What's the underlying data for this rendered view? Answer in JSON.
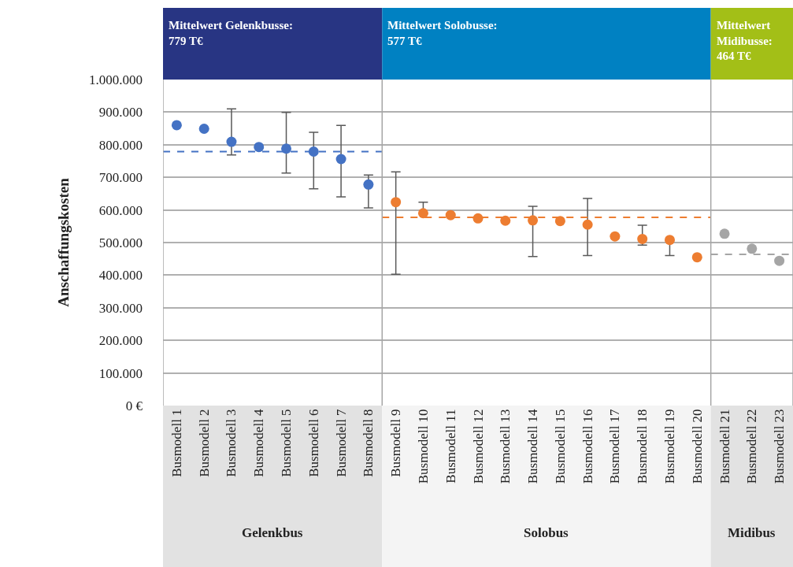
{
  "chart_data": {
    "type": "scatter",
    "ylabel": "Anschaffungskosten",
    "categories": [
      "Busmodell 1",
      "Busmodell 2",
      "Busmodell 3",
      "Busmodell 4",
      "Busmodell 5",
      "Busmodell 6",
      "Busmodell 7",
      "Busmodell 8",
      "Busmodell 9",
      "Busmodell 10",
      "Busmodell 11",
      "Busmodell 12",
      "Busmodell 13",
      "Busmodell 14",
      "Busmodell 15",
      "Busmodell 16",
      "Busmodell 17",
      "Busmodell 18",
      "Busmodell 19",
      "Busmodell 20",
      "Busmodell 21",
      "Busmodell 22",
      "Busmodell 23"
    ],
    "series": [
      {
        "color": "#4472c4",
        "values": [
          860000,
          849000,
          809000,
          793000,
          788000,
          779000,
          756000,
          678000,
          null,
          null,
          null,
          null,
          null,
          null,
          null,
          null,
          null,
          null,
          null,
          null,
          null,
          null,
          null
        ],
        "errors": [
          null,
          null,
          [
            769000,
            910000
          ],
          null,
          [
            713000,
            899000
          ],
          [
            665000,
            838000
          ],
          [
            640000,
            859000
          ],
          [
            606000,
            707000
          ],
          null,
          null,
          null,
          null,
          null,
          null,
          null,
          null,
          null,
          null,
          null,
          null,
          null,
          null,
          null
        ]
      },
      {
        "color": "#ed7d31",
        "values": [
          null,
          null,
          null,
          null,
          null,
          null,
          null,
          null,
          624000,
          590000,
          584000,
          574000,
          567000,
          568000,
          566000,
          555000,
          519000,
          511000,
          508000,
          455000,
          null,
          null,
          null
        ],
        "errors": [
          null,
          null,
          null,
          null,
          null,
          null,
          null,
          null,
          [
            403000,
            717000
          ],
          [
            590000,
            624000
          ],
          null,
          null,
          null,
          [
            457000,
            611000
          ],
          null,
          [
            460000,
            635000
          ],
          null,
          [
            492000,
            553000
          ],
          [
            460000,
            508000
          ],
          null,
          null,
          null,
          null
        ]
      },
      {
        "color": "#a5a5a5",
        "values": [
          null,
          null,
          null,
          null,
          null,
          null,
          null,
          null,
          null,
          null,
          null,
          null,
          null,
          null,
          null,
          null,
          null,
          null,
          null,
          null,
          527000,
          481000,
          444000
        ]
      }
    ],
    "ref_lines": [
      {
        "axis": "y",
        "value": 779000,
        "color": "#4472c4",
        "line_style": "dashed"
      },
      {
        "axis": "y",
        "value": 577000,
        "color": "#ed7d31",
        "line_style": "dashed"
      },
      {
        "axis": "y",
        "value": 464000,
        "color": "#a5a5a5",
        "line_style": "dashed"
      }
    ],
    "annotations": [
      "Mittelwert Gelenkbusse:\n779 T€",
      "Mittelwert Solobusse:\n577 T€",
      "Mittelwert\nMidibusse:\n464 T€",
      "Gelenkbus",
      "Solobus",
      "Midibus"
    ],
    "ylim": [
      0,
      1000000
    ],
    "yticks": [
      {
        "value": 0,
        "label": "0 €"
      },
      {
        "value": 100000,
        "label": "100.000"
      },
      {
        "value": 200000,
        "label": "200.000"
      },
      {
        "value": 300000,
        "label": "300.000"
      },
      {
        "value": 400000,
        "label": "400.000"
      },
      {
        "value": 500000,
        "label": "500.000"
      },
      {
        "value": 600000,
        "label": "600.000"
      },
      {
        "value": 700000,
        "label": "700.000"
      },
      {
        "value": 800000,
        "label": "800.000"
      },
      {
        "value": 900000,
        "label": "900.000"
      },
      {
        "value": 1000000,
        "label": "1.000.000"
      }
    ],
    "grid": "y",
    "legend": false,
    "marker": "circle"
  }
}
